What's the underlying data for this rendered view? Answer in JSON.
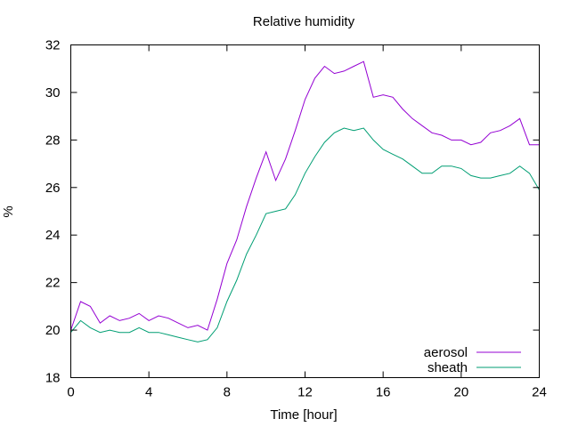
{
  "chart_data": {
    "type": "line",
    "title": "Relative humidity",
    "xlabel": "Time [hour]",
    "ylabel": "%",
    "xlim": [
      0,
      24
    ],
    "ylim": [
      18,
      32
    ],
    "xticks": [
      0,
      4,
      8,
      12,
      16,
      20,
      24
    ],
    "yticks": [
      18,
      20,
      22,
      24,
      26,
      28,
      30,
      32
    ],
    "grid": false,
    "legend_position": "bottom-right",
    "series": [
      {
        "name": "aerosol",
        "color": "#9400d3",
        "x": [
          0,
          0.5,
          1,
          1.5,
          2,
          2.5,
          3,
          3.5,
          4,
          4.5,
          5,
          5.5,
          6,
          6.5,
          7,
          7.5,
          8,
          8.5,
          9,
          9.5,
          10,
          10.5,
          11,
          11.5,
          12,
          12.5,
          13,
          13.5,
          14,
          14.5,
          15,
          15.5,
          16,
          16.5,
          17,
          17.5,
          18,
          18.5,
          19,
          19.5,
          20,
          20.5,
          21,
          21.5,
          22,
          22.5,
          23,
          23.5,
          24
        ],
        "values": [
          20.0,
          21.2,
          21.0,
          20.3,
          20.6,
          20.4,
          20.5,
          20.7,
          20.4,
          20.6,
          20.5,
          20.3,
          20.1,
          20.2,
          20.0,
          21.3,
          22.8,
          23.8,
          25.2,
          26.4,
          27.5,
          26.3,
          27.2,
          28.4,
          29.7,
          30.6,
          31.1,
          30.8,
          30.9,
          31.1,
          31.3,
          29.8,
          29.9,
          29.8,
          29.3,
          28.9,
          28.6,
          28.3,
          28.2,
          28.0,
          28.0,
          27.8,
          27.9,
          28.3,
          28.4,
          28.6,
          28.9,
          27.8,
          27.8
        ]
      },
      {
        "name": "sheath",
        "color": "#009e73",
        "x": [
          0,
          0.5,
          1,
          1.5,
          2,
          2.5,
          3,
          3.5,
          4,
          4.5,
          5,
          5.5,
          6,
          6.5,
          7,
          7.5,
          8,
          8.5,
          9,
          9.5,
          10,
          10.5,
          11,
          11.5,
          12,
          12.5,
          13,
          13.5,
          14,
          14.5,
          15,
          15.5,
          16,
          16.5,
          17,
          17.5,
          18,
          18.5,
          19,
          19.5,
          20,
          20.5,
          21,
          21.5,
          22,
          22.5,
          23,
          23.5,
          24
        ],
        "values": [
          19.9,
          20.4,
          20.1,
          19.9,
          20.0,
          19.9,
          19.9,
          20.1,
          19.9,
          19.9,
          19.8,
          19.7,
          19.6,
          19.5,
          19.6,
          20.1,
          21.2,
          22.1,
          23.2,
          24.0,
          24.9,
          25.0,
          25.1,
          25.7,
          26.6,
          27.3,
          27.9,
          28.3,
          28.5,
          28.4,
          28.5,
          28.0,
          27.6,
          27.4,
          27.2,
          26.9,
          26.6,
          26.6,
          26.9,
          26.9,
          26.8,
          26.5,
          26.4,
          26.4,
          26.5,
          26.6,
          26.9,
          26.6,
          25.9
        ]
      }
    ]
  }
}
